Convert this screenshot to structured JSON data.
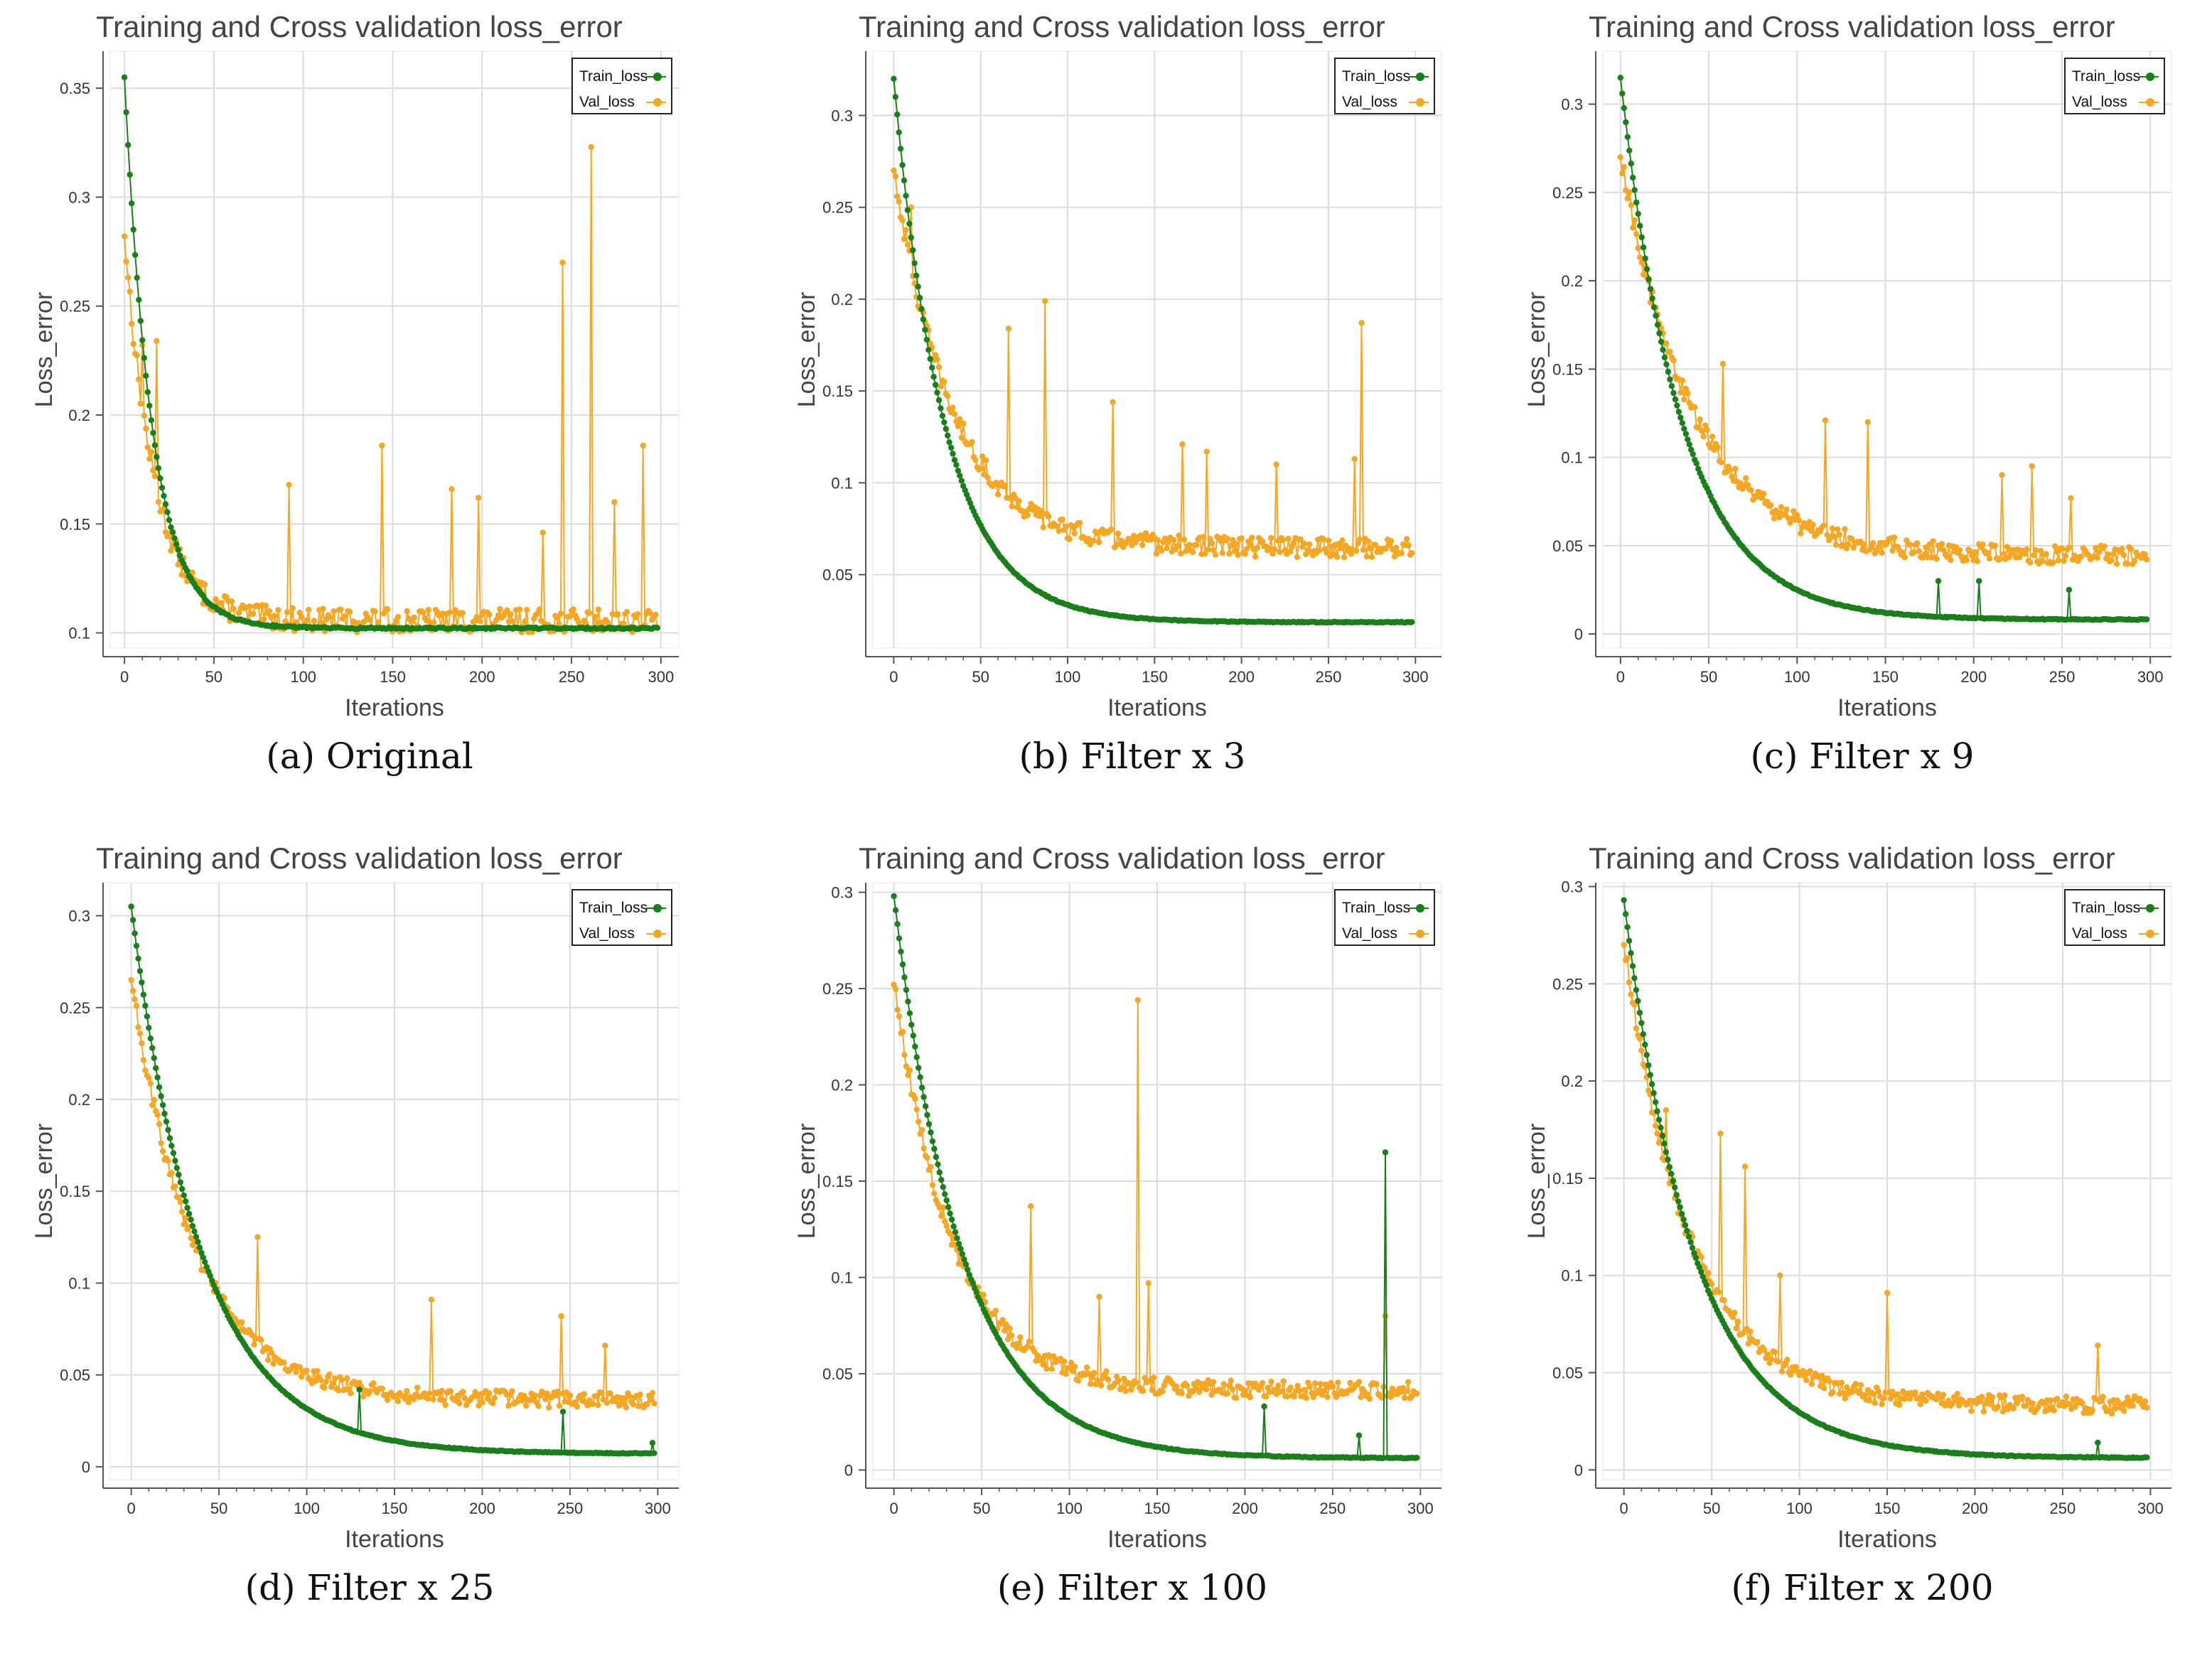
{
  "colors": {
    "train": "#1a7f1a",
    "val": "#f5a623",
    "grid": "#dcdcdc",
    "axis": "#555555"
  },
  "chart_data": [
    {
      "type": "line",
      "caption": "(a) Original",
      "title": "Training and Cross validation loss_error",
      "xlabel": "Iterations",
      "ylabel": "Loss_error",
      "xlim": [
        -8,
        310
      ],
      "ylim": [
        0.093,
        0.367
      ],
      "xticks": [
        0,
        50,
        100,
        150,
        200,
        250,
        300
      ],
      "yticks": [
        0.1,
        0.15,
        0.2,
        0.25,
        0.3,
        0.35
      ],
      "ytick_labels": [
        "0.1",
        "0.15",
        "0.2",
        "0.25",
        "0.3",
        "0.35"
      ],
      "series": [
        {
          "name": "Train_loss",
          "role": "train",
          "start": 0.355,
          "end": 0.102,
          "k": 0.065,
          "noise": 0.0008,
          "spikes": []
        },
        {
          "name": "Val_loss",
          "role": "val",
          "start": 0.282,
          "end": 0.104,
          "k": 0.06,
          "noise": 0.006,
          "spikes": [
            [
              10,
              0.232
            ],
            [
              18,
              0.234
            ],
            [
              92,
              0.168
            ],
            [
              144,
              0.186
            ],
            [
              183,
              0.166
            ],
            [
              198,
              0.162
            ],
            [
              234,
              0.146
            ],
            [
              245,
              0.27
            ],
            [
              261,
              0.323
            ],
            [
              274,
              0.16
            ],
            [
              290,
              0.186
            ]
          ]
        }
      ]
    },
    {
      "type": "line",
      "caption": "(b) Filter x 3",
      "title": "Training and Cross validation loss_error",
      "xlabel": "Iterations",
      "ylabel": "Loss_error",
      "xlim": [
        -12,
        315
      ],
      "ylim": [
        0.01,
        0.335
      ],
      "xticks": [
        0,
        50,
        100,
        150,
        200,
        250,
        300
      ],
      "yticks": [
        0.05,
        0.1,
        0.15,
        0.2,
        0.25,
        0.3
      ],
      "ytick_labels": [
        "0.05",
        "0.1",
        "0.15",
        "0.2",
        "0.25",
        "0.3"
      ],
      "series": [
        {
          "name": "Train_loss",
          "role": "train",
          "start": 0.32,
          "end": 0.024,
          "k": 0.0345,
          "noise": 0.0005,
          "spikes": []
        },
        {
          "name": "Val_loss",
          "role": "val",
          "start": 0.27,
          "end": 0.063,
          "k": 0.03,
          "noise": 0.006,
          "spikes": [
            [
              10,
              0.25
            ],
            [
              66,
              0.184
            ],
            [
              87,
              0.199
            ],
            [
              126,
              0.144
            ],
            [
              166,
              0.121
            ],
            [
              180,
              0.117
            ],
            [
              220,
              0.11
            ],
            [
              265,
              0.113
            ],
            [
              269,
              0.187
            ]
          ]
        }
      ]
    },
    {
      "type": "line",
      "caption": "(c) Filter x 9",
      "title": "Training and Cross validation loss_error",
      "xlabel": "Iterations",
      "ylabel": "Loss_error",
      "xlim": [
        -10,
        312
      ],
      "ylim": [
        -0.008,
        0.33
      ],
      "xticks": [
        0,
        50,
        100,
        150,
        200,
        250,
        300
      ],
      "yticks": [
        0,
        0.05,
        0.1,
        0.15,
        0.2,
        0.25,
        0.3
      ],
      "ytick_labels": [
        "0",
        "0.05",
        "0.1",
        "0.15",
        "0.2",
        "0.25",
        "0.3"
      ],
      "series": [
        {
          "name": "Train_loss",
          "role": "train",
          "start": 0.315,
          "end": 0.008,
          "k": 0.029,
          "noise": 0.0006,
          "spikes": [
            [
              180,
              0.03
            ],
            [
              203,
              0.03
            ],
            [
              254,
              0.025
            ]
          ]
        },
        {
          "name": "Val_loss",
          "role": "val",
          "start": 0.27,
          "end": 0.043,
          "k": 0.025,
          "noise": 0.006,
          "spikes": [
            [
              58,
              0.153
            ],
            [
              116,
              0.121
            ],
            [
              140,
              0.12
            ],
            [
              216,
              0.09
            ],
            [
              233,
              0.095
            ],
            [
              255,
              0.077
            ]
          ]
        }
      ]
    },
    {
      "type": "line",
      "caption": "(d) Filter x 25",
      "title": "Training and Cross validation loss_error",
      "xlabel": "Iterations",
      "ylabel": "Loss_error",
      "xlim": [
        -12,
        312
      ],
      "ylim": [
        -0.007,
        0.318
      ],
      "xticks": [
        0,
        50,
        100,
        150,
        200,
        250,
        300
      ],
      "yticks": [
        0,
        0.05,
        0.1,
        0.15,
        0.2,
        0.25,
        0.3
      ],
      "ytick_labels": [
        "0",
        "0.05",
        "0.1",
        "0.15",
        "0.2",
        "0.25",
        "0.3"
      ],
      "series": [
        {
          "name": "Train_loss",
          "role": "train",
          "start": 0.305,
          "end": 0.007,
          "k": 0.025,
          "noise": 0.0005,
          "spikes": [
            [
              130,
              0.042
            ],
            [
              246,
              0.03
            ],
            [
              297,
              0.013
            ]
          ]
        },
        {
          "name": "Val_loss",
          "role": "val",
          "start": 0.265,
          "end": 0.035,
          "k": 0.028,
          "noise": 0.005,
          "spikes": [
            [
              72,
              0.125
            ],
            [
              171,
              0.091
            ],
            [
              245,
              0.082
            ],
            [
              270,
              0.066
            ]
          ]
        }
      ]
    },
    {
      "type": "line",
      "caption": "(e) Filter x 100",
      "title": "Training and Cross validation loss_error",
      "xlabel": "Iterations",
      "ylabel": "Loss_error",
      "xlim": [
        -12,
        312
      ],
      "ylim": [
        -0.005,
        0.305
      ],
      "xticks": [
        0,
        50,
        100,
        150,
        200,
        250,
        300
      ],
      "yticks": [
        0,
        0.05,
        0.1,
        0.15,
        0.2,
        0.25,
        0.3
      ],
      "ytick_labels": [
        "0",
        "0.05",
        "0.1",
        "0.15",
        "0.2",
        "0.25",
        "0.3"
      ],
      "series": [
        {
          "name": "Train_loss",
          "role": "train",
          "start": 0.298,
          "end": 0.006,
          "k": 0.026,
          "noise": 0.0005,
          "spikes": [
            [
              211,
              0.033
            ],
            [
              265,
              0.018
            ],
            [
              280,
              0.165
            ]
          ]
        },
        {
          "name": "Val_loss",
          "role": "val",
          "start": 0.252,
          "end": 0.04,
          "k": 0.03,
          "noise": 0.005,
          "spikes": [
            [
              78,
              0.137
            ],
            [
              117,
              0.09
            ],
            [
              139,
              0.244
            ],
            [
              145,
              0.097
            ],
            [
              280,
              0.08
            ]
          ]
        }
      ]
    },
    {
      "type": "line",
      "caption": "(f) Filter x 200",
      "title": "Training and Cross validation loss_error",
      "xlabel": "Iterations",
      "ylabel": "Loss_error",
      "xlim": [
        -12,
        312
      ],
      "ylim": [
        -0.005,
        0.302
      ],
      "xticks": [
        0,
        50,
        100,
        150,
        200,
        250,
        300
      ],
      "yticks": [
        0,
        0.05,
        0.1,
        0.15,
        0.2,
        0.25,
        0.3
      ],
      "ytick_labels": [
        "0",
        "0.05",
        "0.1",
        "0.15",
        "0.2",
        "0.25",
        "0.3"
      ],
      "series": [
        {
          "name": "Train_loss",
          "role": "train",
          "start": 0.293,
          "end": 0.006,
          "k": 0.025,
          "noise": 0.0005,
          "spikes": [
            [
              270,
              0.014
            ]
          ]
        },
        {
          "name": "Val_loss",
          "role": "val",
          "start": 0.27,
          "end": 0.032,
          "k": 0.027,
          "noise": 0.005,
          "spikes": [
            [
              18,
              0.177
            ],
            [
              24,
              0.185
            ],
            [
              55,
              0.173
            ],
            [
              69,
              0.156
            ],
            [
              89,
              0.1
            ],
            [
              150,
              0.091
            ],
            [
              270,
              0.064
            ]
          ]
        }
      ]
    }
  ]
}
